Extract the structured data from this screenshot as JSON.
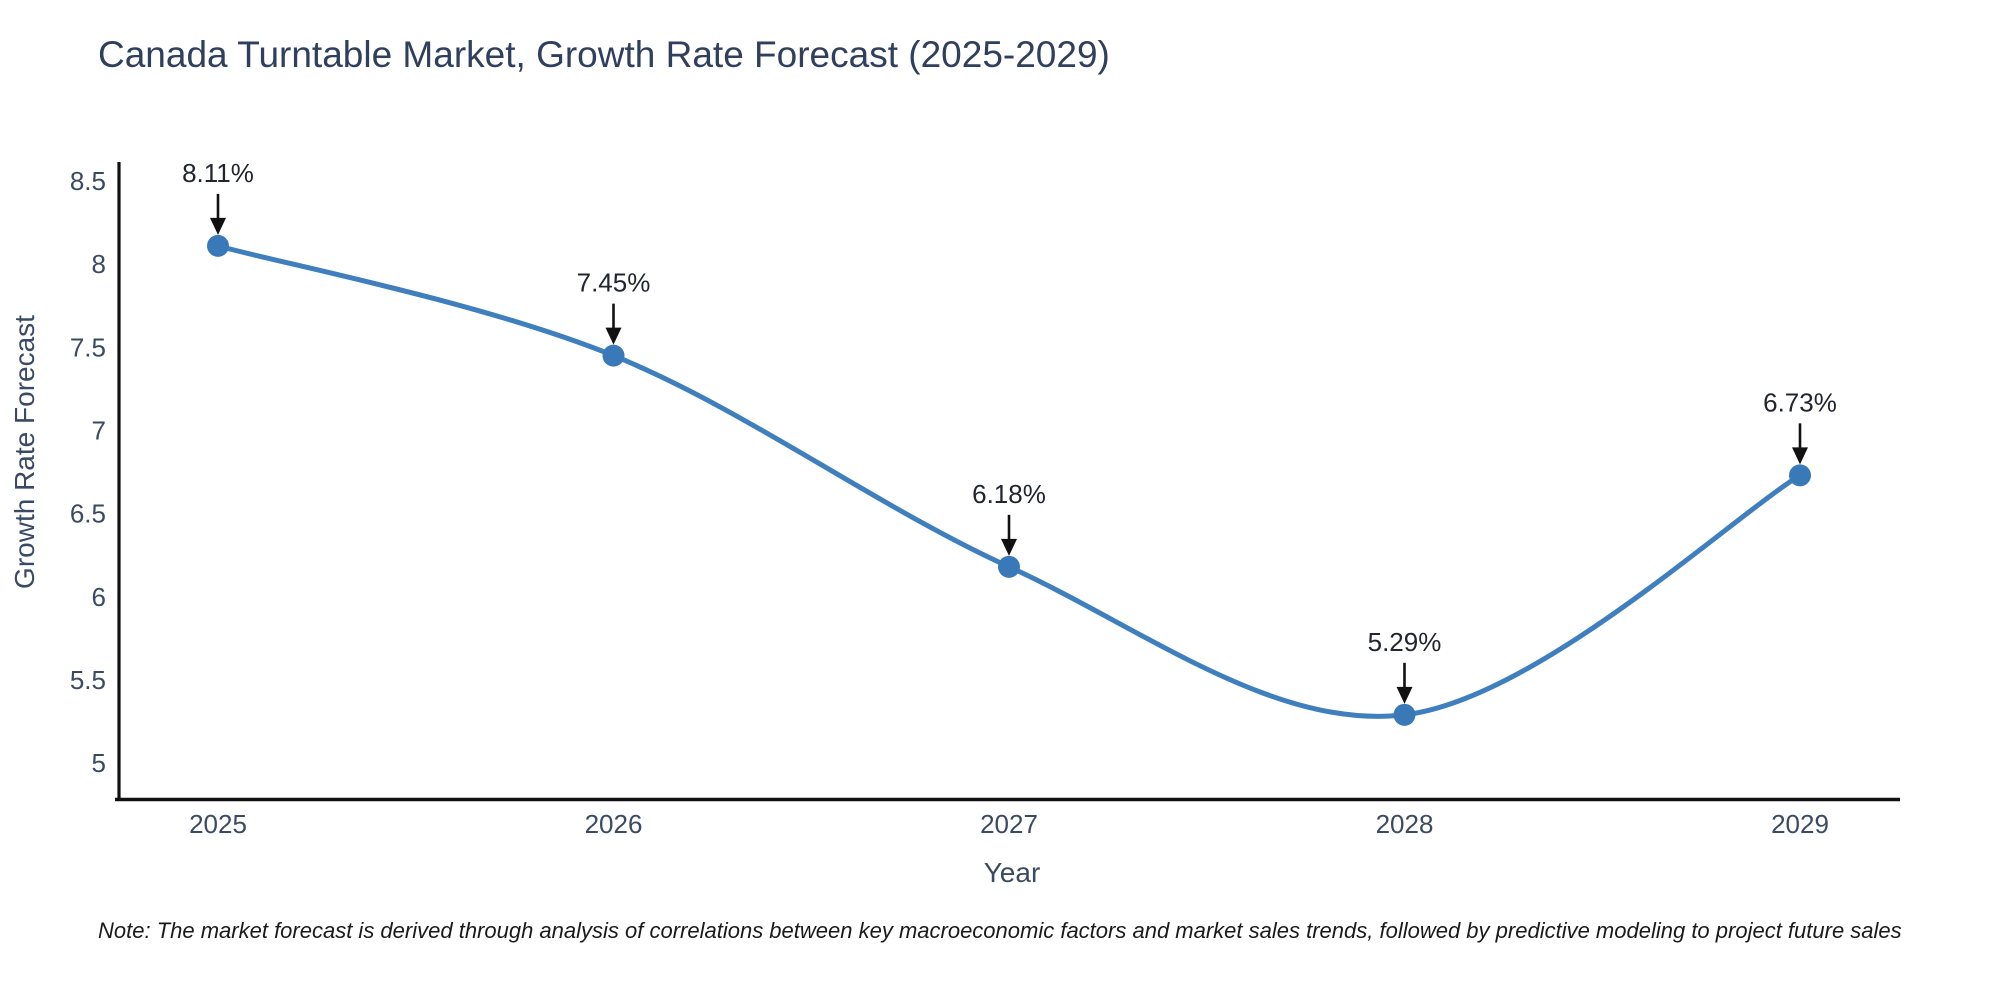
{
  "title": "Canada Turntable Market, Growth Rate Forecast (2025-2029)",
  "note": "Note: The market forecast is derived through analysis of correlations between key macroeconomic factors and market sales trends, followed by predictive modeling to project future sales",
  "chart_data": {
    "type": "line",
    "title": "Canada Turntable Market, Growth Rate Forecast (2025-2029)",
    "xlabel": "Year",
    "ylabel": "Growth Rate Forecast",
    "x": [
      "2025",
      "2026",
      "2027",
      "2028",
      "2029"
    ],
    "values": [
      8.11,
      7.45,
      6.18,
      5.29,
      6.73
    ],
    "point_labels": [
      "8.11%",
      "7.45%",
      "6.18%",
      "5.29%",
      "6.73%"
    ],
    "y_ticks": [
      "8.5",
      "8",
      "7.5",
      "7",
      "6.5",
      "6",
      "5.5",
      "5"
    ],
    "ylim": [
      4.8,
      8.6
    ],
    "grid": false,
    "legend": "none",
    "line_shape": "spline",
    "marker": "circle",
    "annotation_arrows": true,
    "colors": {
      "line": "#3f7fbe",
      "marker": "#3a79b8",
      "axis": "#111111",
      "title_text": "#2f3f5c",
      "tick_text": "#3b4a63",
      "annotation_text": "#20252e",
      "note_text": "#1a1a1a"
    }
  }
}
